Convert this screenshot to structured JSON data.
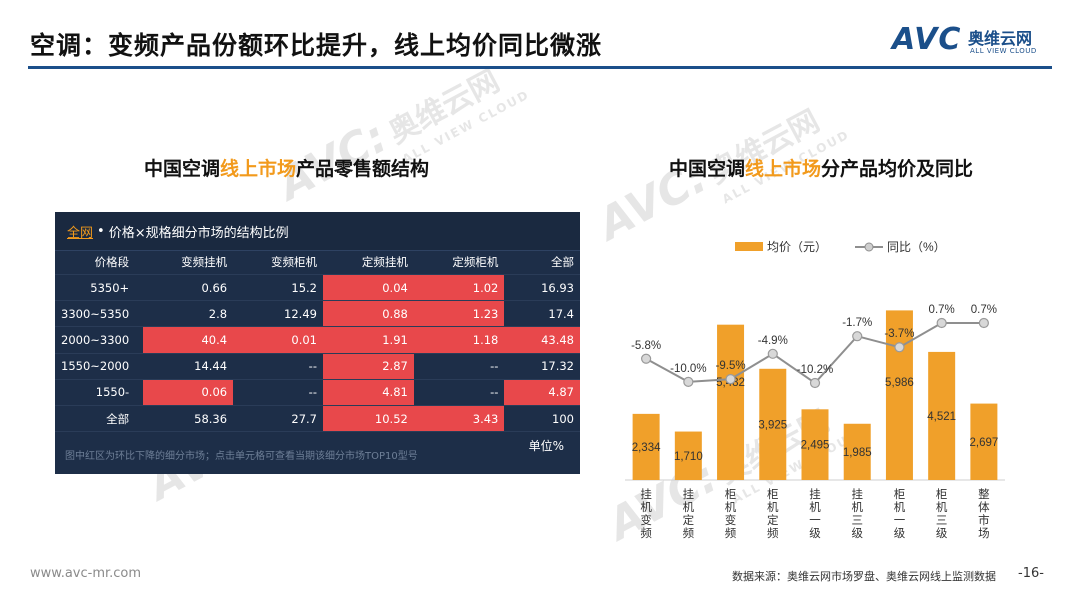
{
  "header": {
    "title": "空调：变频产品份额环比提升，线上均价同比微涨",
    "logo": {
      "mark": "AVC",
      "cn": "奥维云网",
      "en": "ALL VIEW CLOUD"
    }
  },
  "watermark": {
    "mark": "AVC:",
    "cn": "奥维云网",
    "en": "ALL VIEW CLOUD"
  },
  "left_panel": {
    "title_pre": "中国空调",
    "title_hl": "线上市场",
    "title_post": "产品零售额结构",
    "table": {
      "scope_link": "全网",
      "scope_sep": "•",
      "scope_desc": "价格×规格细分市场的结构比例",
      "columns": [
        "价格段",
        "变频挂机",
        "变频柜机",
        "定频挂机",
        "定频柜机",
        "全部"
      ],
      "rows": [
        {
          "label": "5350+",
          "cells": [
            "0.66",
            "15.2",
            "0.04",
            "1.02",
            "16.93"
          ],
          "red": [
            false,
            false,
            true,
            true,
            false
          ]
        },
        {
          "label": "3300~5350",
          "cells": [
            "2.8",
            "12.49",
            "0.88",
            "1.23",
            "17.4"
          ],
          "red": [
            false,
            false,
            true,
            true,
            false
          ]
        },
        {
          "label": "2000~3300",
          "cells": [
            "40.4",
            "0.01",
            "1.91",
            "1.18",
            "43.48"
          ],
          "red": [
            true,
            true,
            true,
            true,
            true
          ]
        },
        {
          "label": "1550~2000",
          "cells": [
            "14.44",
            "--",
            "2.87",
            "--",
            "17.32"
          ],
          "red": [
            false,
            false,
            true,
            false,
            false
          ]
        },
        {
          "label": "1550-",
          "cells": [
            "0.06",
            "--",
            "4.81",
            "--",
            "4.87"
          ],
          "red": [
            true,
            false,
            true,
            false,
            true
          ]
        },
        {
          "label": "全部",
          "cells": [
            "58.36",
            "27.7",
            "10.52",
            "3.43",
            "100"
          ],
          "red": [
            false,
            false,
            true,
            true,
            false
          ]
        }
      ],
      "note": "图中红区为环比下降的细分市场；点击单元格可查看当期该细分市场TOP10型号",
      "unit": "单位%"
    }
  },
  "right_panel": {
    "title_pre": "中国空调",
    "title_hl": "线上市场",
    "title_post": "分产品均价及同比"
  },
  "chart_data": {
    "type": "bar",
    "categories": [
      "挂机变频",
      "挂机定频",
      "柜机变频",
      "柜机定频",
      "挂机一级",
      "挂机三级",
      "柜机一级",
      "柜机三级",
      "整体市场"
    ],
    "series": [
      {
        "name": "均价（元）",
        "kind": "bar",
        "color": "#f0a02a",
        "values": [
          2334,
          1710,
          5482,
          3925,
          2495,
          1985,
          5986,
          4521,
          2697
        ],
        "labels": [
          "2,334",
          "1,710",
          "5,482",
          "3,925",
          "2,495",
          "1,985",
          "5,986",
          "4,521",
          "2,697"
        ]
      },
      {
        "name": "同比（%）",
        "kind": "line",
        "color": "#8f8f8f",
        "values": [
          -5.8,
          -10.0,
          -9.5,
          -4.9,
          -10.2,
          -1.7,
          -3.7,
          0.7,
          0.7
        ],
        "labels": [
          "-5.8%",
          "-10.0%",
          "-9.5%",
          "-4.9%",
          "-10.2%",
          "-1.7%",
          "-3.7%",
          "0.7%",
          "0.7%"
        ]
      }
    ],
    "legend": "top"
  },
  "footer": {
    "website": "www.avc-mr.com",
    "source": "数据来源：奥维云网市场罗盘、奥维云网线上监测数据",
    "page": "-16-"
  }
}
